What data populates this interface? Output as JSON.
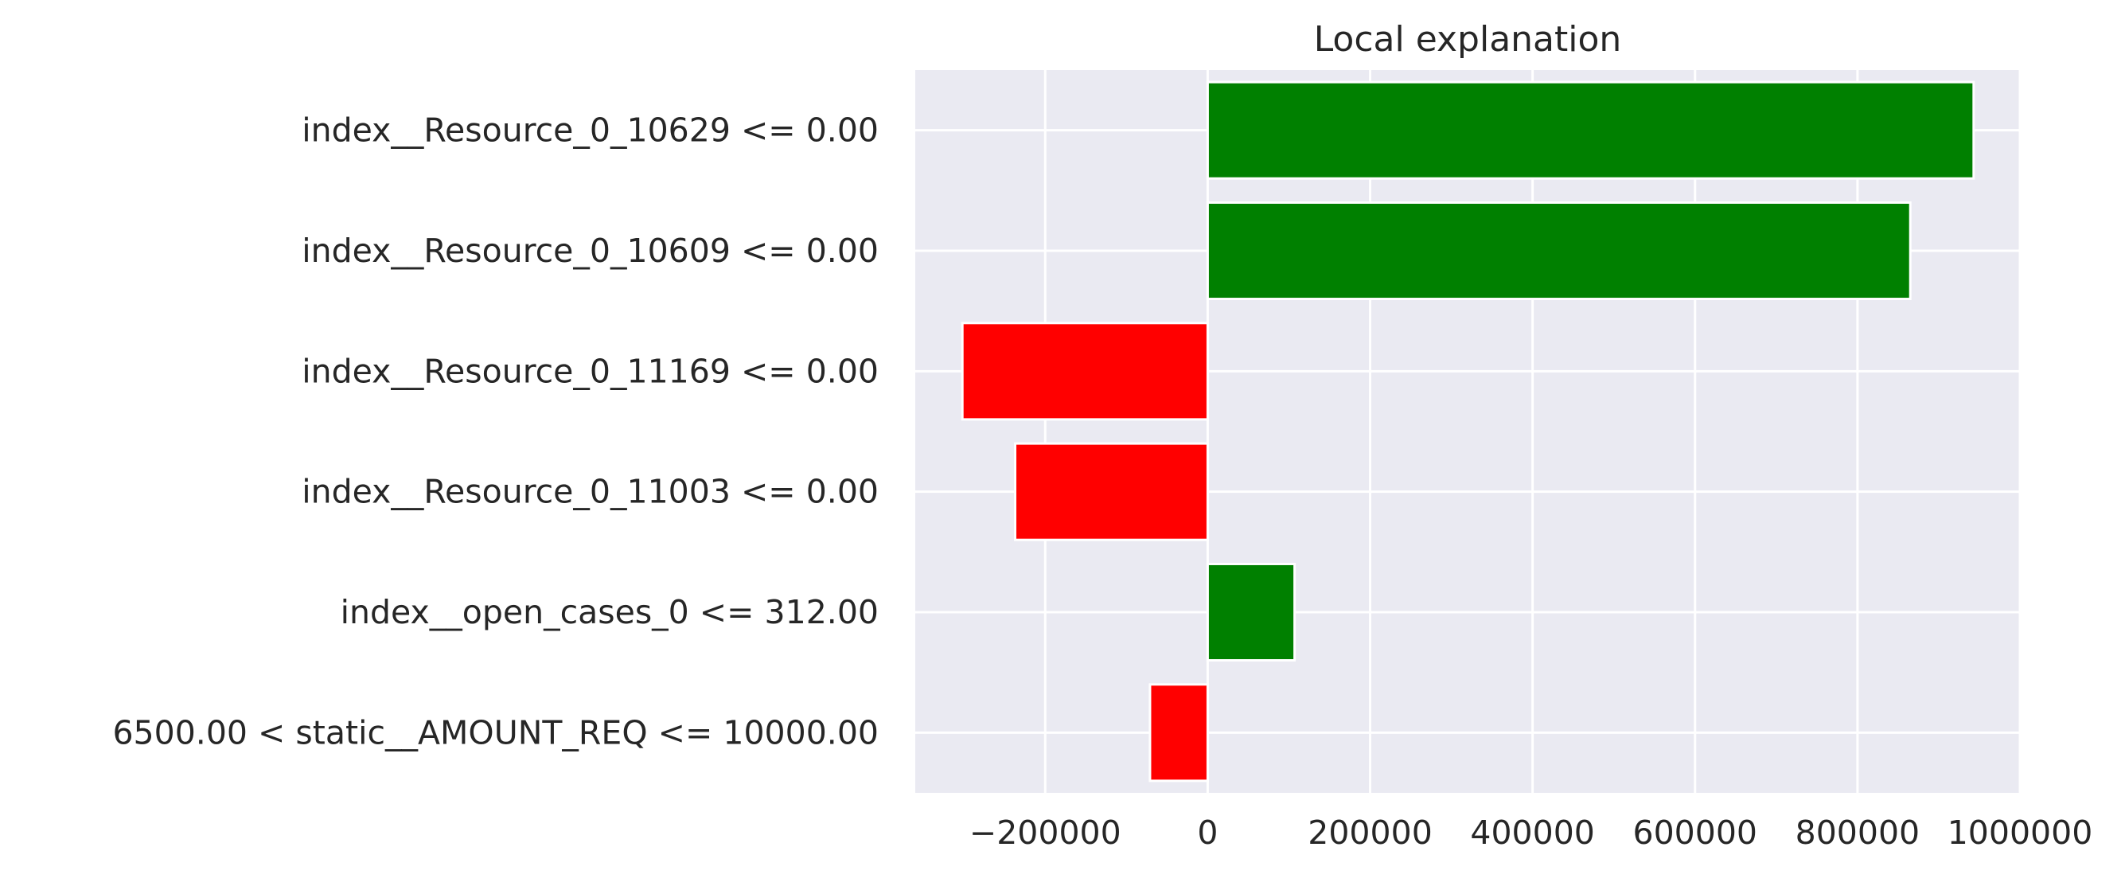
{
  "chart_data": {
    "type": "bar",
    "orientation": "horizontal",
    "title": "Local explanation",
    "xlabel": "",
    "ylabel": "",
    "categories": [
      "index__Resource_0_10629 <= 0.00",
      "index__Resource_0_10609 <= 0.00",
      "index__Resource_0_11169 <= 0.00",
      "index__Resource_0_11003 <= 0.00",
      "index__open_cases_0 <= 312.00",
      "6500.00 < static__AMOUNT_REQ <= 10000.00"
    ],
    "values": [
      943000,
      865000,
      -302000,
      -237000,
      107000,
      -71000
    ],
    "xlim": [
      -360000,
      1000000
    ],
    "xticks": [
      -200000,
      0,
      200000,
      400000,
      600000,
      800000,
      1000000
    ],
    "xtick_labels": [
      "−200000",
      "0",
      "200000",
      "400000",
      "600000",
      "800000",
      "1000000"
    ],
    "grid": true,
    "legend": "none",
    "colors": {
      "positive": "#008000",
      "negative": "#ff0000",
      "plot_background": "#eaeaf2",
      "grid": "#ffffff",
      "text": "#262626"
    }
  }
}
